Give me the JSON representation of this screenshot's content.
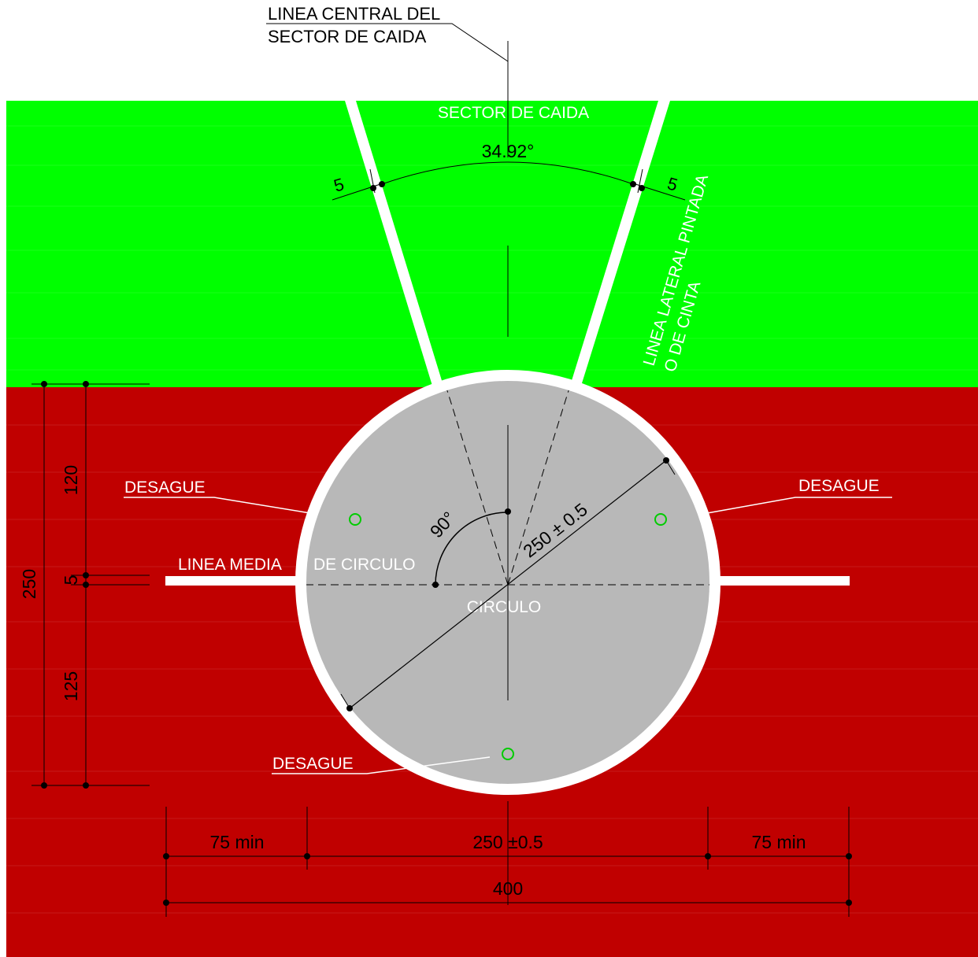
{
  "colors": {
    "field_green": "#00ff00",
    "field_red": "#c00000",
    "circle_grey": "#b8b8b8",
    "line_white": "#ffffff",
    "dimension_black": "#000000",
    "drain_green": "#00cc00"
  },
  "labels": {
    "centerline_line1": "LINEA CENTRAL DEL",
    "centerline_line2": "SECTOR DE CAIDA",
    "sector": "SECTOR DE CAIDA",
    "sector_angle": "34.92°",
    "line_width_left": "5",
    "line_width_right": "5",
    "lateral_line1": "LINEA LATERAL PINTADA",
    "lateral_line2": "O DE CINTA",
    "drain_left": "DESAGUE",
    "drain_right": "DESAGUE",
    "drain_bottom": "DESAGUE",
    "midline_left": "LINEA MEDIA",
    "midline_right": "DE CIRCULO",
    "circle": "CIRCULO",
    "right_angle": "90°",
    "diameter": "250 ± 0.5"
  },
  "dimensions": {
    "left_total": "250",
    "left_upper": "120",
    "left_middle": "5",
    "left_lower": "125",
    "bottom_left": "75 min",
    "bottom_center": "250 ±0.5",
    "bottom_right": "75 min",
    "bottom_total": "400"
  }
}
